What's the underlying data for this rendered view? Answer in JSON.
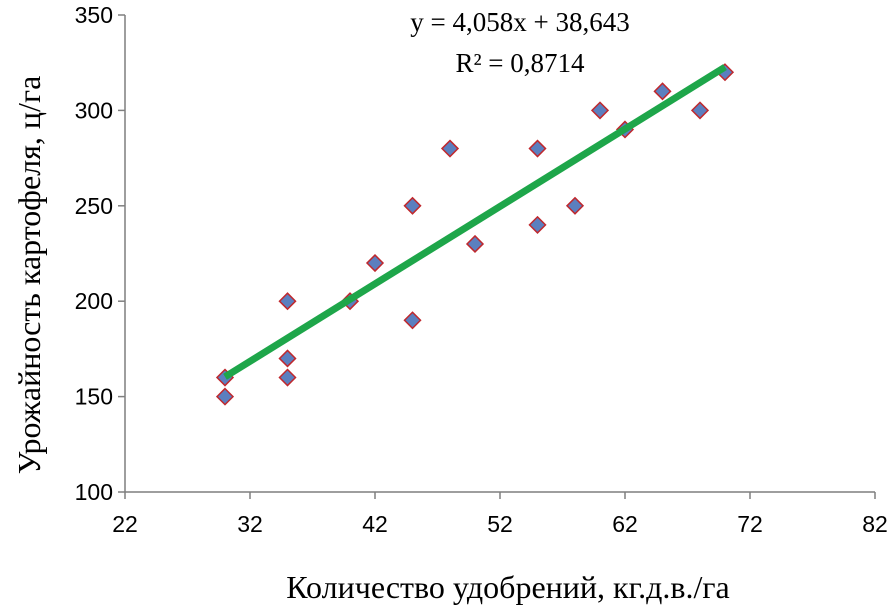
{
  "chart_data": {
    "type": "scatter",
    "xlabel": "Количество удобрений, кг.д.в./га",
    "ylabel": "Урожайность картофеля, ц/га",
    "xlim": [
      22,
      82
    ],
    "ylim": [
      100,
      350
    ],
    "x_ticks": [
      "22",
      "32",
      "42",
      "52",
      "62",
      "72",
      "82"
    ],
    "y_ticks": [
      "100",
      "150",
      "200",
      "250",
      "300",
      "350"
    ],
    "grid": false,
    "series": [
      {
        "points": [
          {
            "x": 30,
            "y": 150
          },
          {
            "x": 30,
            "y": 160
          },
          {
            "x": 35,
            "y": 160
          },
          {
            "x": 35,
            "y": 170
          },
          {
            "x": 35,
            "y": 200
          },
          {
            "x": 40,
            "y": 200
          },
          {
            "x": 42,
            "y": 220
          },
          {
            "x": 45,
            "y": 190
          },
          {
            "x": 45,
            "y": 250
          },
          {
            "x": 48,
            "y": 280
          },
          {
            "x": 50,
            "y": 230
          },
          {
            "x": 55,
            "y": 240
          },
          {
            "x": 55,
            "y": 280
          },
          {
            "x": 58,
            "y": 250
          },
          {
            "x": 60,
            "y": 300
          },
          {
            "x": 62,
            "y": 290
          },
          {
            "x": 65,
            "y": 310
          },
          {
            "x": 68,
            "y": 300
          },
          {
            "x": 70,
            "y": 320
          }
        ]
      }
    ],
    "trendline": {
      "slope": 4.058,
      "intercept": 38.643,
      "x_range": [
        30,
        70
      ],
      "equation": "y = 4,058x + 38,643",
      "r_squared": "R² = 0,8714",
      "color": "#1ea64a"
    },
    "marker_fill": "#5b7fbf",
    "marker_stroke": "#c0282d"
  }
}
